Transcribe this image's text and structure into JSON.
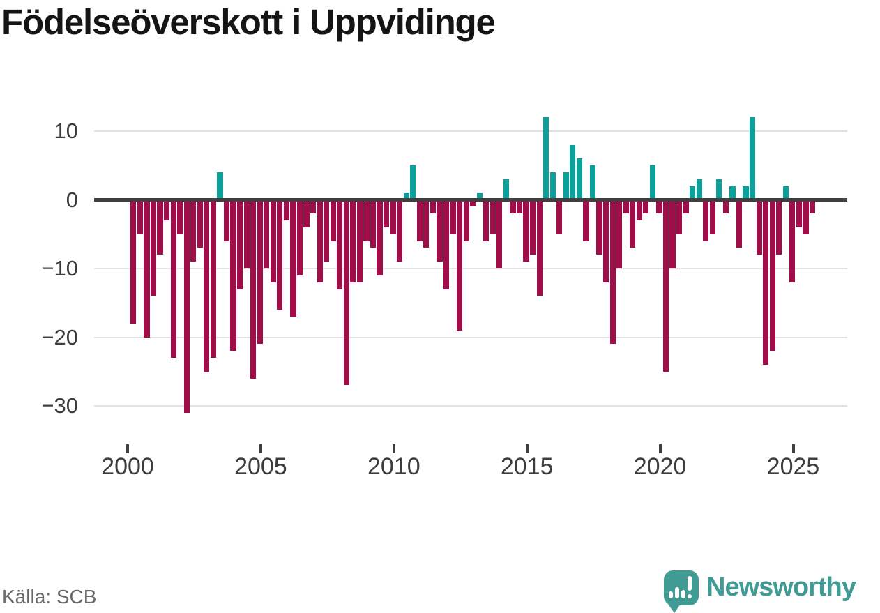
{
  "header": {
    "title": "Födelseöverskott i Uppvidinge"
  },
  "footer": {
    "source": "Källa: SCB",
    "brand": "Newsworthy"
  },
  "icons": {
    "logo_icon": "newsworthy-speech-bubble-barchart-icon"
  },
  "colors": {
    "positive": "#0ba19a",
    "negative": "#a00d49",
    "axis_line": "#3f3f3f",
    "gridline": "#e2e2e2",
    "axis_text": "#3d3d3d",
    "title_text": "#151515",
    "source_text": "#696969",
    "brand_teal": "#3f9b93"
  },
  "chart_data": {
    "type": "bar",
    "title": "Födelseöverskott i Uppvidinge",
    "period": "quarterly",
    "start": "2000Q1",
    "end": "2025Q3",
    "xlabel": "",
    "ylabel": "",
    "ylim": [
      -32,
      13
    ],
    "y_ticks": [
      10,
      0,
      -10,
      -20,
      -30
    ],
    "x_tick_labels": [
      "2000",
      "2005",
      "2010",
      "2015",
      "2020",
      "2025"
    ],
    "grid": "horizontal",
    "legend": "none",
    "series_by_year": [
      {
        "year": 2000,
        "quarters": [
          -18,
          -5,
          -20,
          -14
        ]
      },
      {
        "year": 2001,
        "quarters": [
          -8,
          -3,
          -23,
          -5
        ]
      },
      {
        "year": 2002,
        "quarters": [
          -31,
          -9,
          -7,
          -25
        ]
      },
      {
        "year": 2003,
        "quarters": [
          -23,
          4,
          -6,
          -22
        ]
      },
      {
        "year": 2004,
        "quarters": [
          -13,
          -10,
          -26,
          -21
        ]
      },
      {
        "year": 2005,
        "quarters": [
          -10,
          -12,
          -16,
          -3
        ]
      },
      {
        "year": 2006,
        "quarters": [
          -17,
          -11,
          -4,
          -2
        ]
      },
      {
        "year": 2007,
        "quarters": [
          -12,
          -9,
          -6,
          -13
        ]
      },
      {
        "year": 2008,
        "quarters": [
          -27,
          -12,
          -12,
          -6
        ]
      },
      {
        "year": 2009,
        "quarters": [
          -7,
          -11,
          -4,
          -5
        ]
      },
      {
        "year": 2010,
        "quarters": [
          -9,
          1,
          5,
          -6
        ]
      },
      {
        "year": 2011,
        "quarters": [
          -7,
          -2,
          -9,
          -13
        ]
      },
      {
        "year": 2012,
        "quarters": [
          -5,
          -19,
          -6,
          -1
        ]
      },
      {
        "year": 2013,
        "quarters": [
          1,
          -6,
          -5,
          -10
        ]
      },
      {
        "year": 2014,
        "quarters": [
          3,
          -2,
          -2,
          -9
        ]
      },
      {
        "year": 2015,
        "quarters": [
          -8,
          -14,
          12,
          4
        ]
      },
      {
        "year": 2016,
        "quarters": [
          -5,
          4,
          8,
          6
        ]
      },
      {
        "year": 2017,
        "quarters": [
          -6,
          5,
          -8,
          -12
        ]
      },
      {
        "year": 2018,
        "quarters": [
          -21,
          -10,
          -2,
          -7
        ]
      },
      {
        "year": 2019,
        "quarters": [
          -3,
          -2,
          5,
          -2
        ]
      },
      {
        "year": 2020,
        "quarters": [
          -25,
          -10,
          -5,
          -2
        ]
      },
      {
        "year": 2021,
        "quarters": [
          2,
          3,
          -6,
          -5
        ]
      },
      {
        "year": 2022,
        "quarters": [
          3,
          -2,
          2,
          -7
        ]
      },
      {
        "year": 2023,
        "quarters": [
          2,
          12,
          -8,
          -24
        ]
      },
      {
        "year": 2024,
        "quarters": [
          -22,
          -8,
          2,
          -12
        ]
      },
      {
        "year": 2025,
        "quarters": [
          -4,
          -5,
          -2
        ]
      }
    ]
  }
}
